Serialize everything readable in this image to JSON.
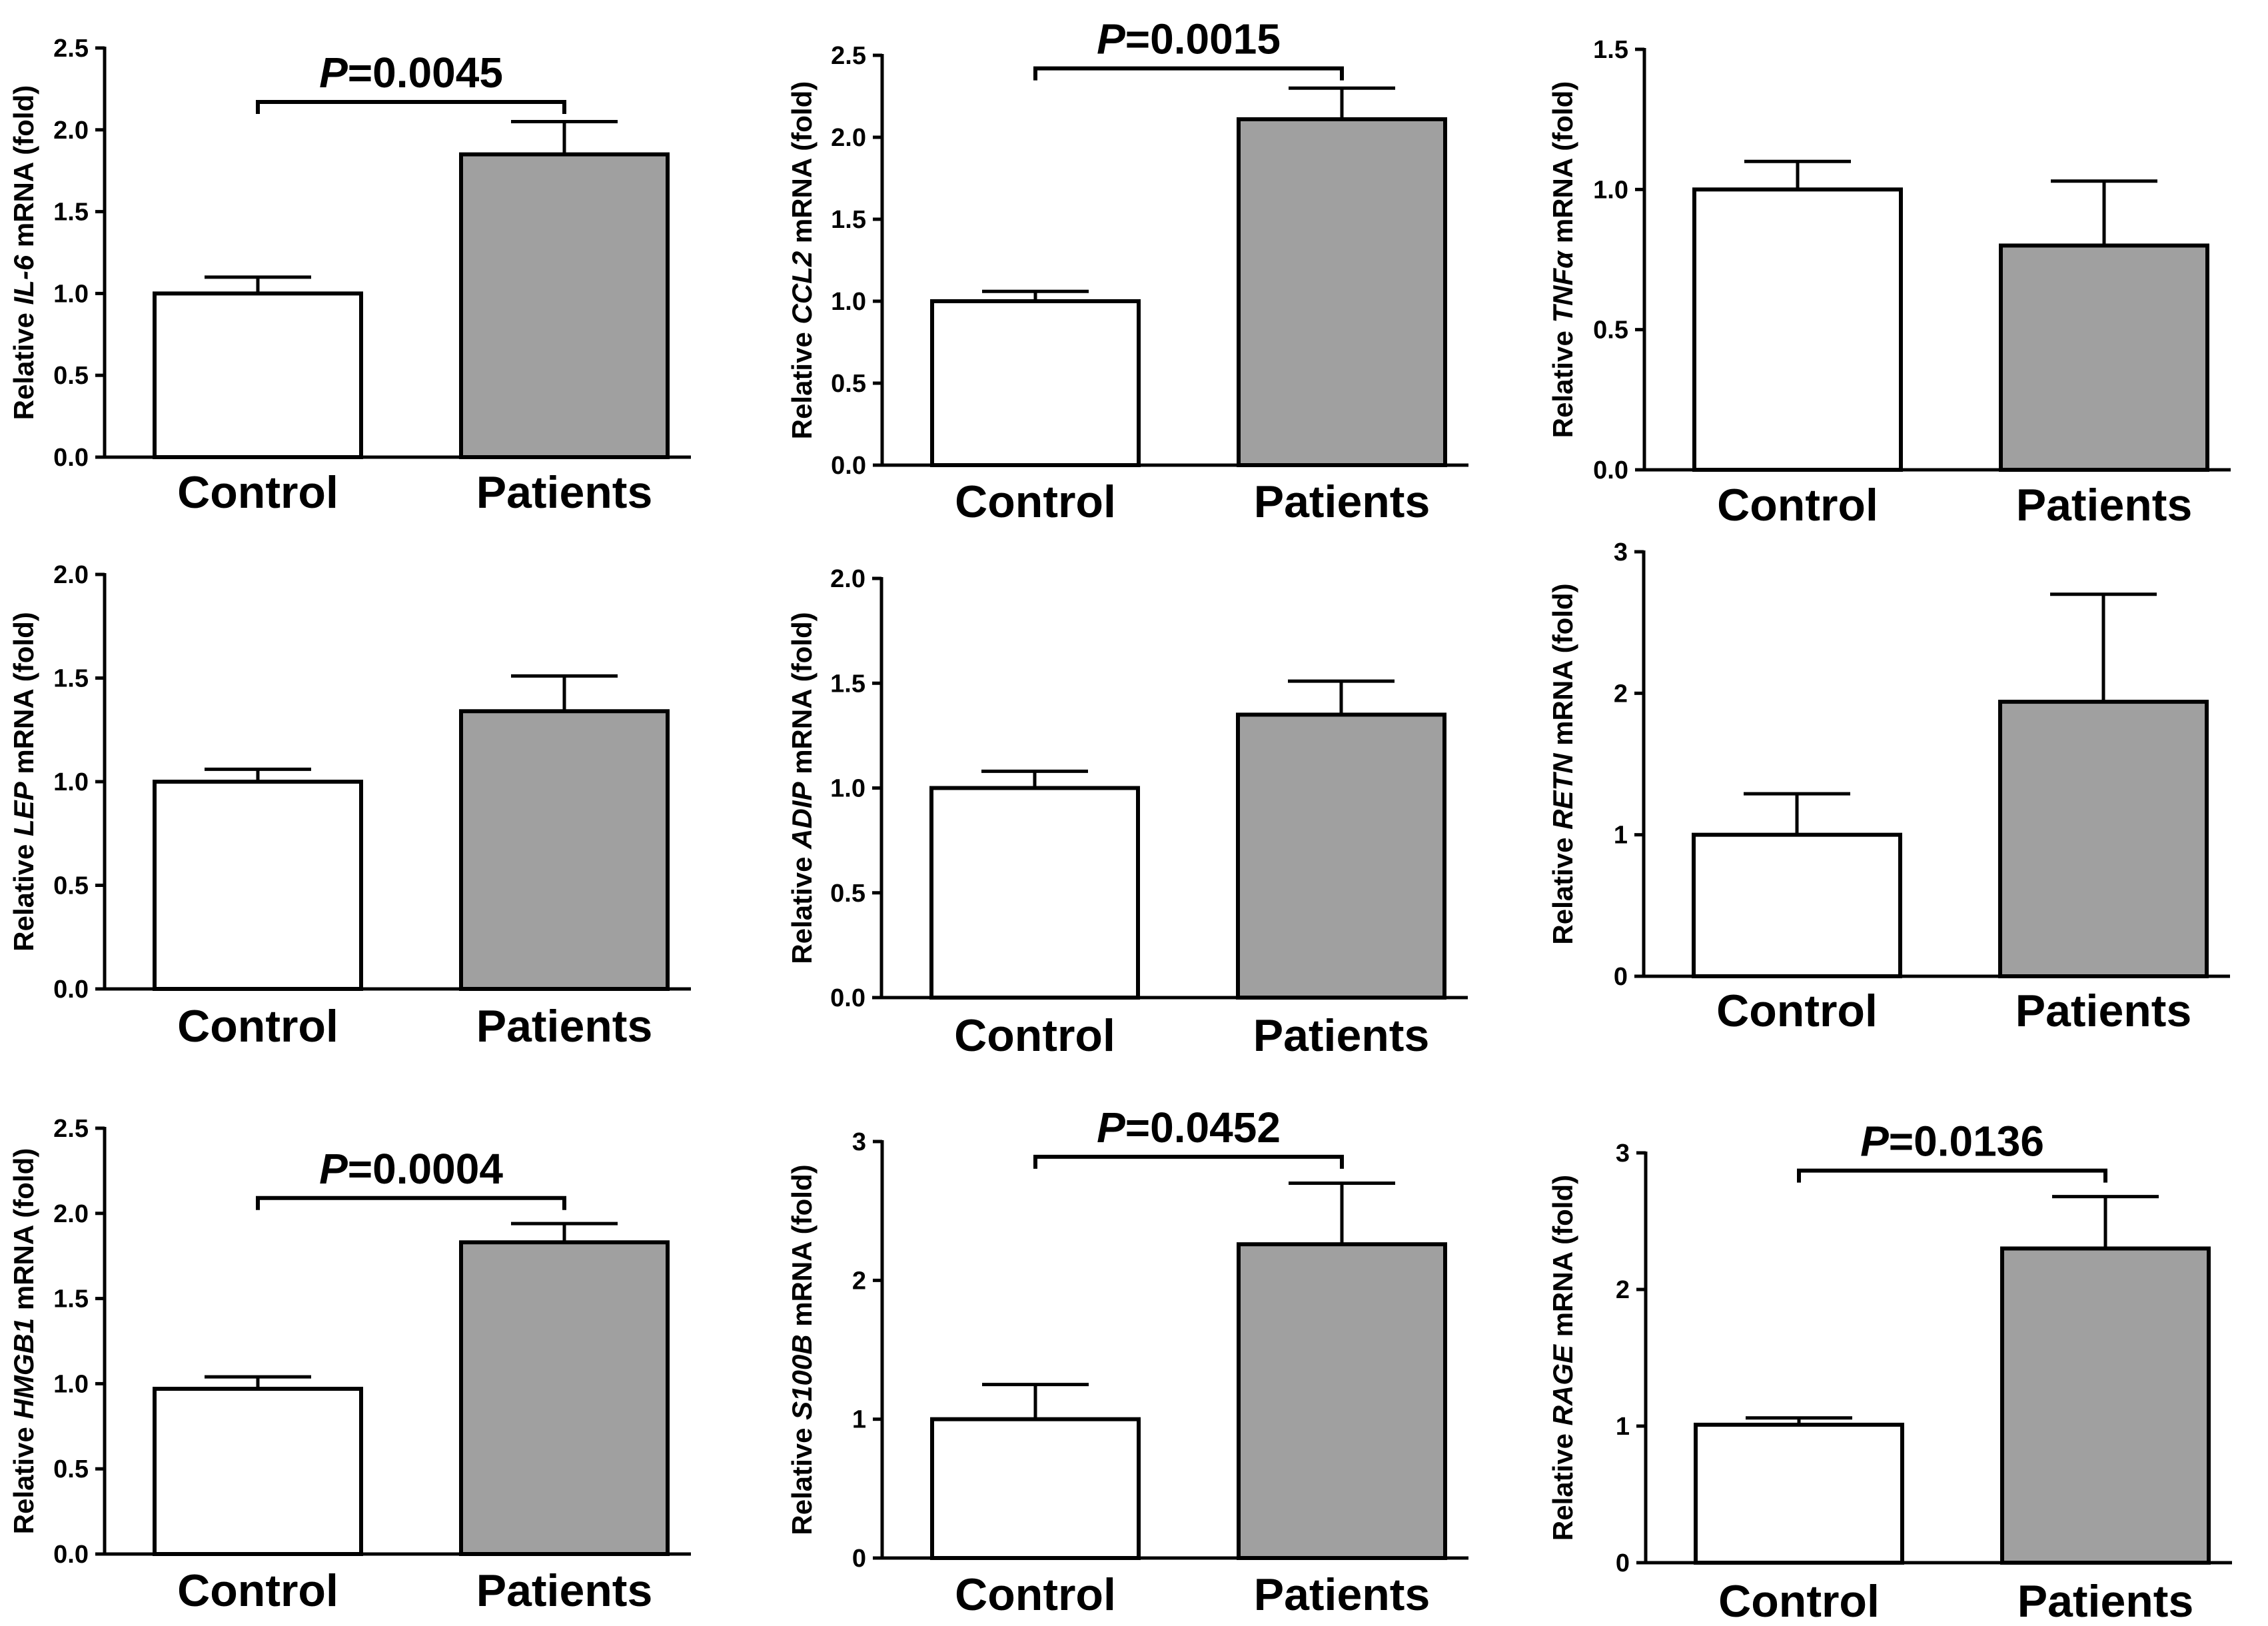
{
  "figure": {
    "colors": {
      "control": "#ffffff",
      "patients": "#a0a0a0",
      "ink": "#000000"
    }
  },
  "chart_data": [
    {
      "type": "bar",
      "gene": "IL-6",
      "ylabel_prefix": "Relative",
      "ylabel_suffix": "mRNA (fold)",
      "categories": [
        "Control",
        "Patients"
      ],
      "values": [
        1.0,
        1.85
      ],
      "errors": [
        0.1,
        0.2
      ],
      "ylim": [
        0,
        2.5
      ],
      "yticks": [
        "0.0",
        "0.5",
        "1.0",
        "1.5",
        "2.0",
        "2.5"
      ],
      "significance": {
        "prefix": "P",
        "text": "=0.0045",
        "y": 2.17
      }
    },
    {
      "type": "bar",
      "gene": "CCL2",
      "ylabel_prefix": "Relative",
      "ylabel_suffix": "mRNA (fold)",
      "categories": [
        "Control",
        "Patients"
      ],
      "values": [
        1.0,
        2.11
      ],
      "errors": [
        0.06,
        0.19
      ],
      "ylim": [
        0,
        2.5
      ],
      "yticks": [
        "0.0",
        "0.5",
        "1.0",
        "1.5",
        "2.0",
        "2.5"
      ],
      "significance": {
        "prefix": "P",
        "text": "=0.0015",
        "y": 2.42
      }
    },
    {
      "type": "bar",
      "gene": "TNFα",
      "ylabel_prefix": "Relative",
      "ylabel_suffix": "mRNA (fold)",
      "categories": [
        "Control",
        "Patients"
      ],
      "values": [
        1.0,
        0.8
      ],
      "errors": [
        0.1,
        0.23
      ],
      "ylim": [
        0,
        1.5
      ],
      "yticks": [
        "0.0",
        "0.5",
        "1.0",
        "1.5"
      ],
      "significance": null
    },
    {
      "type": "bar",
      "gene": "LEP",
      "ylabel_prefix": "Relative",
      "ylabel_suffix": "mRNA (fold)",
      "categories": [
        "Control",
        "Patients"
      ],
      "values": [
        1.0,
        1.34
      ],
      "errors": [
        0.06,
        0.17
      ],
      "ylim": [
        0,
        2.0
      ],
      "yticks": [
        "0.0",
        "0.5",
        "1.0",
        "1.5",
        "2.0"
      ],
      "significance": null
    },
    {
      "type": "bar",
      "gene": "ADIP",
      "ylabel_prefix": "Relative",
      "ylabel_suffix": "mRNA (fold)",
      "categories": [
        "Control",
        "Patients"
      ],
      "values": [
        1.0,
        1.35
      ],
      "errors": [
        0.08,
        0.16
      ],
      "ylim": [
        0,
        2.0
      ],
      "yticks": [
        "0.0",
        "0.5",
        "1.0",
        "1.5",
        "2.0"
      ],
      "significance": null
    },
    {
      "type": "bar",
      "gene": "RETN",
      "ylabel_prefix": "Relative",
      "ylabel_suffix": "mRNA (fold)",
      "categories": [
        "Control",
        "Patients"
      ],
      "values": [
        1.0,
        1.94
      ],
      "errors": [
        0.29,
        0.76
      ],
      "ylim": [
        0,
        3
      ],
      "yticks": [
        "0",
        "1",
        "2",
        "3"
      ],
      "significance": null
    },
    {
      "type": "bar",
      "gene": "HMGB1",
      "ylabel_prefix": "Relative",
      "ylabel_suffix": "mRNA (fold)",
      "categories": [
        "Control",
        "Patients"
      ],
      "values": [
        0.97,
        1.83
      ],
      "errors": [
        0.07,
        0.11
      ],
      "ylim": [
        0,
        2.5
      ],
      "yticks": [
        "0.0",
        "0.5",
        "1.0",
        "1.5",
        "2.0",
        "2.5"
      ],
      "significance": {
        "prefix": "P",
        "text": "=0.0004",
        "y": 2.09
      }
    },
    {
      "type": "bar",
      "gene": "S100B",
      "ylabel_prefix": "Relative",
      "ylabel_suffix": "mRNA (fold)",
      "categories": [
        "Control",
        "Patients"
      ],
      "values": [
        1.0,
        2.26
      ],
      "errors": [
        0.25,
        0.44
      ],
      "ylim": [
        0,
        3
      ],
      "yticks": [
        "0",
        "1",
        "2",
        "3"
      ],
      "significance": {
        "prefix": "P",
        "text": "=0.0452",
        "y": 2.89
      }
    },
    {
      "type": "bar",
      "gene": "RAGE",
      "ylabel_prefix": "Relative",
      "ylabel_suffix": "mRNA (fold)",
      "categories": [
        "Control",
        "Patients"
      ],
      "values": [
        1.01,
        2.3
      ],
      "errors": [
        0.05,
        0.38
      ],
      "ylim": [
        0,
        3
      ],
      "yticks": [
        "0",
        "1",
        "2",
        "3"
      ],
      "significance": {
        "prefix": "P",
        "text": "=0.0136",
        "y": 2.87
      }
    }
  ]
}
